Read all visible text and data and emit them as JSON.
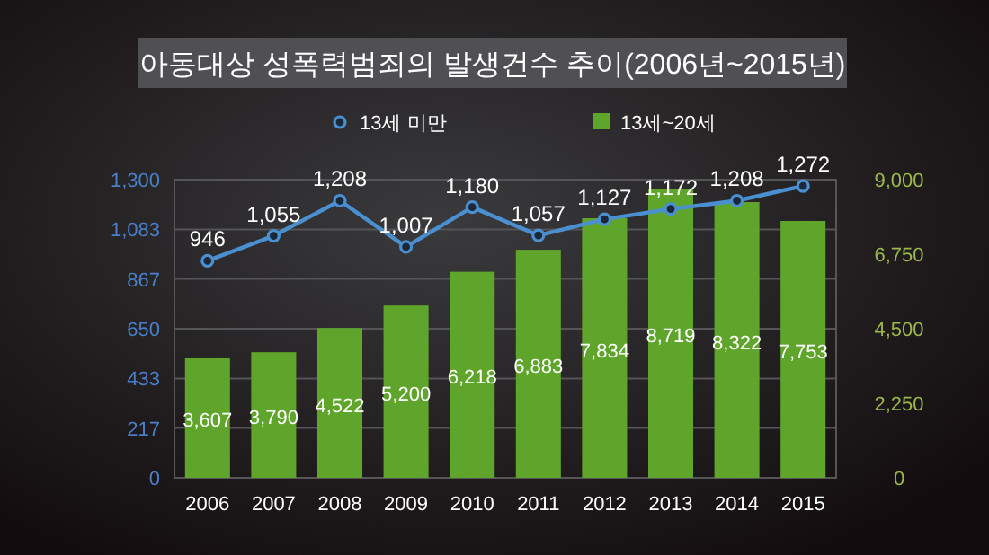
{
  "chart_data": {
    "type": "bar",
    "title": "아동대상 성폭력범죄의 발생건수 추이(2006년~2015년)",
    "categories": [
      "2006",
      "2007",
      "2008",
      "2009",
      "2010",
      "2011",
      "2012",
      "2013",
      "2014",
      "2015"
    ],
    "series": [
      {
        "name": "13세 미만",
        "type": "line",
        "axis": "y",
        "color": "#4a8fd0",
        "values": [
          946,
          1055,
          1208,
          1007,
          1180,
          1057,
          1127,
          1172,
          1208,
          1272
        ],
        "value_labels": [
          "946",
          "1,055",
          "1,208",
          "1,007",
          "1,180",
          "1,057",
          "1,127",
          "1,172",
          "1,208",
          "1,272"
        ]
      },
      {
        "name": "13세~20세",
        "type": "bar",
        "axis": "y2",
        "color": "#5fa52c",
        "values": [
          3607,
          3790,
          4522,
          5200,
          6218,
          6883,
          7834,
          8719,
          8322,
          7753
        ],
        "value_labels": [
          "3,607",
          "3,790",
          "4,522",
          "5,200",
          "6,218",
          "6,883",
          "7,834",
          "8,719",
          "8,322",
          "7,753"
        ]
      }
    ],
    "ylim": [
      0,
      1300
    ],
    "yticks": [
      0,
      217,
      433,
      650,
      867,
      {
        "value": 1083,
        "label": "1,083"
      },
      {
        "value": 1300,
        "label": "1,300"
      }
    ],
    "y2lim": [
      0,
      9000
    ],
    "y2ticks": [
      0,
      {
        "value": 2250,
        "label": "2,250"
      },
      {
        "value": 4500,
        "label": "4,500"
      },
      {
        "value": 6750,
        "label": "6,750"
      },
      {
        "value": 9000,
        "label": "9,000"
      }
    ],
    "grid": "y",
    "legend": "top",
    "marker": "circle"
  }
}
